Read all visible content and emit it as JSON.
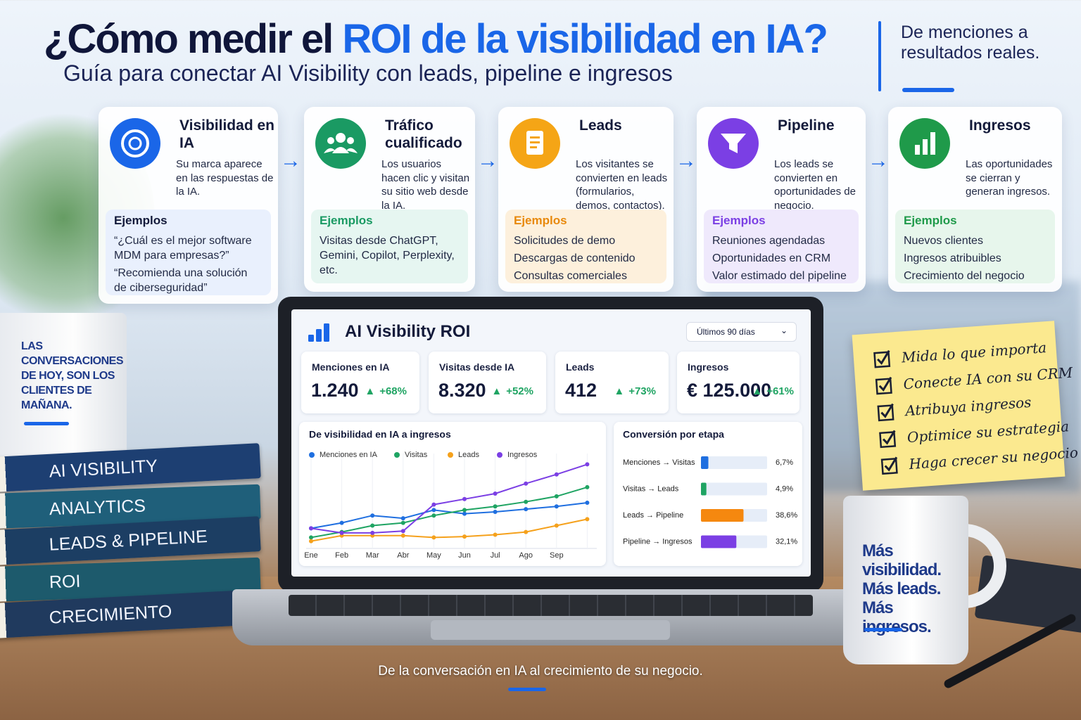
{
  "header": {
    "title_lead": "¿Cómo medir el",
    "title_highlight": "ROI de la visibilidad en IA?",
    "subtitle": "Guía para conectar AI Visibility con leads, pipeline e ingresos",
    "tagline": "De menciones a resultados reales."
  },
  "steps": [
    {
      "title": "Visibilidad en IA",
      "description": "Su marca aparece en las respuestas de la IA.",
      "examples_label": "Ejemplos",
      "examples": [
        "“¿Cuál es el mejor software MDM para empresas?”",
        "“Recomienda una solución de ciberseguridad”"
      ]
    },
    {
      "title": "Tráfico cualificado",
      "description": "Los usuarios hacen clic y visitan su sitio web desde la IA.",
      "examples_label": "Ejemplos",
      "examples": [
        "Visitas desde ChatGPT, Gemini, Copilot, Perplexity, etc."
      ]
    },
    {
      "title": "Leads",
      "description": "Los visitantes se convierten en leads (formularios, demos, contactos).",
      "examples_label": "Ejemplos",
      "examples": [
        "Solicitudes de demo",
        "Descargas de contenido",
        "Consultas comerciales"
      ]
    },
    {
      "title": "Pipeline",
      "description": "Los leads se convierten en oportunidades de negocio.",
      "examples_label": "Ejemplos",
      "examples": [
        "Reuniones agendadas",
        "Oportunidades en CRM",
        "Valor estimado del pipeline"
      ]
    },
    {
      "title": "Ingresos",
      "description": "Las oportunidades se cierran y generan ingresos.",
      "examples_label": "Ejemplos",
      "examples": [
        "Nuevos clientes",
        "Ingresos atribuibles",
        "Crecimiento del negocio"
      ]
    }
  ],
  "mug_left": "LAS CONVERSACIONES DE HOY, SON LOS CLIENTES DE MAÑANA.",
  "books": [
    "AI VISIBILITY",
    "ANALYTICS",
    "LEADS & PIPELINE",
    "ROI",
    "CRECIMIENTO"
  ],
  "dashboard": {
    "title": "AI Visibility ROI",
    "period": "Últimos 90 días",
    "kpis": [
      {
        "label": "Menciones en IA",
        "value": "1.240",
        "change": "+68%"
      },
      {
        "label": "Visitas desde IA",
        "value": "8.320",
        "change": "+52%"
      },
      {
        "label": "Leads",
        "value": "412",
        "change": "+73%"
      },
      {
        "label": "Ingresos",
        "value": "€ 125.000",
        "change": "+61%"
      }
    ]
  },
  "chart_data": [
    {
      "type": "line",
      "title": "De visibilidad en IA a ingresos",
      "categories": [
        "Ene",
        "Feb",
        "Mar",
        "Abr",
        "May",
        "Jun",
        "Jul",
        "Ago",
        "Sep",
        null
      ],
      "ylim": [
        0,
        100
      ],
      "series": [
        {
          "name": "Menciones en IA",
          "color": "#1f6fe0",
          "values": [
            22,
            28,
            36,
            33,
            42,
            38,
            40,
            43,
            46,
            50
          ]
        },
        {
          "name": "Visitas",
          "color": "#1fa463",
          "values": [
            12,
            18,
            25,
            28,
            36,
            42,
            46,
            51,
            57,
            67
          ]
        },
        {
          "name": "Leads",
          "color": "#f5a11c",
          "values": [
            8,
            14,
            14,
            14,
            12,
            13,
            15,
            18,
            25,
            32
          ]
        },
        {
          "name": "Ingresos",
          "color": "#7b3fe4",
          "values": [
            22,
            17,
            17,
            19,
            48,
            54,
            60,
            71,
            81,
            92
          ]
        }
      ]
    },
    {
      "type": "bar",
      "orientation": "horizontal",
      "title": "Conversión por etapa",
      "categories": [
        "Menciones → Visitas",
        "Visitas → Leads",
        "Leads → Pipeline",
        "Pipeline → Ingresos"
      ],
      "values": [
        6.7,
        4.9,
        38.6,
        32.1
      ],
      "value_labels": [
        "6,7%",
        "4,9%",
        "38,6%",
        "32,1%"
      ],
      "colors": [
        "#1f6fe0",
        "#1fa463",
        "#f5880f",
        "#7b3fe4"
      ],
      "xlim": [
        0,
        60
      ]
    }
  ],
  "checklist": [
    "Mida lo que importa",
    "Conecte IA con su CRM",
    "Atribuya ingresos",
    "Optimice su estrategia",
    "Haga crecer su negocio"
  ],
  "mug_right": "Más visibilidad. Más leads. Más ingresos.",
  "footer": "De la conversación en IA al crecimiento de su negocio."
}
